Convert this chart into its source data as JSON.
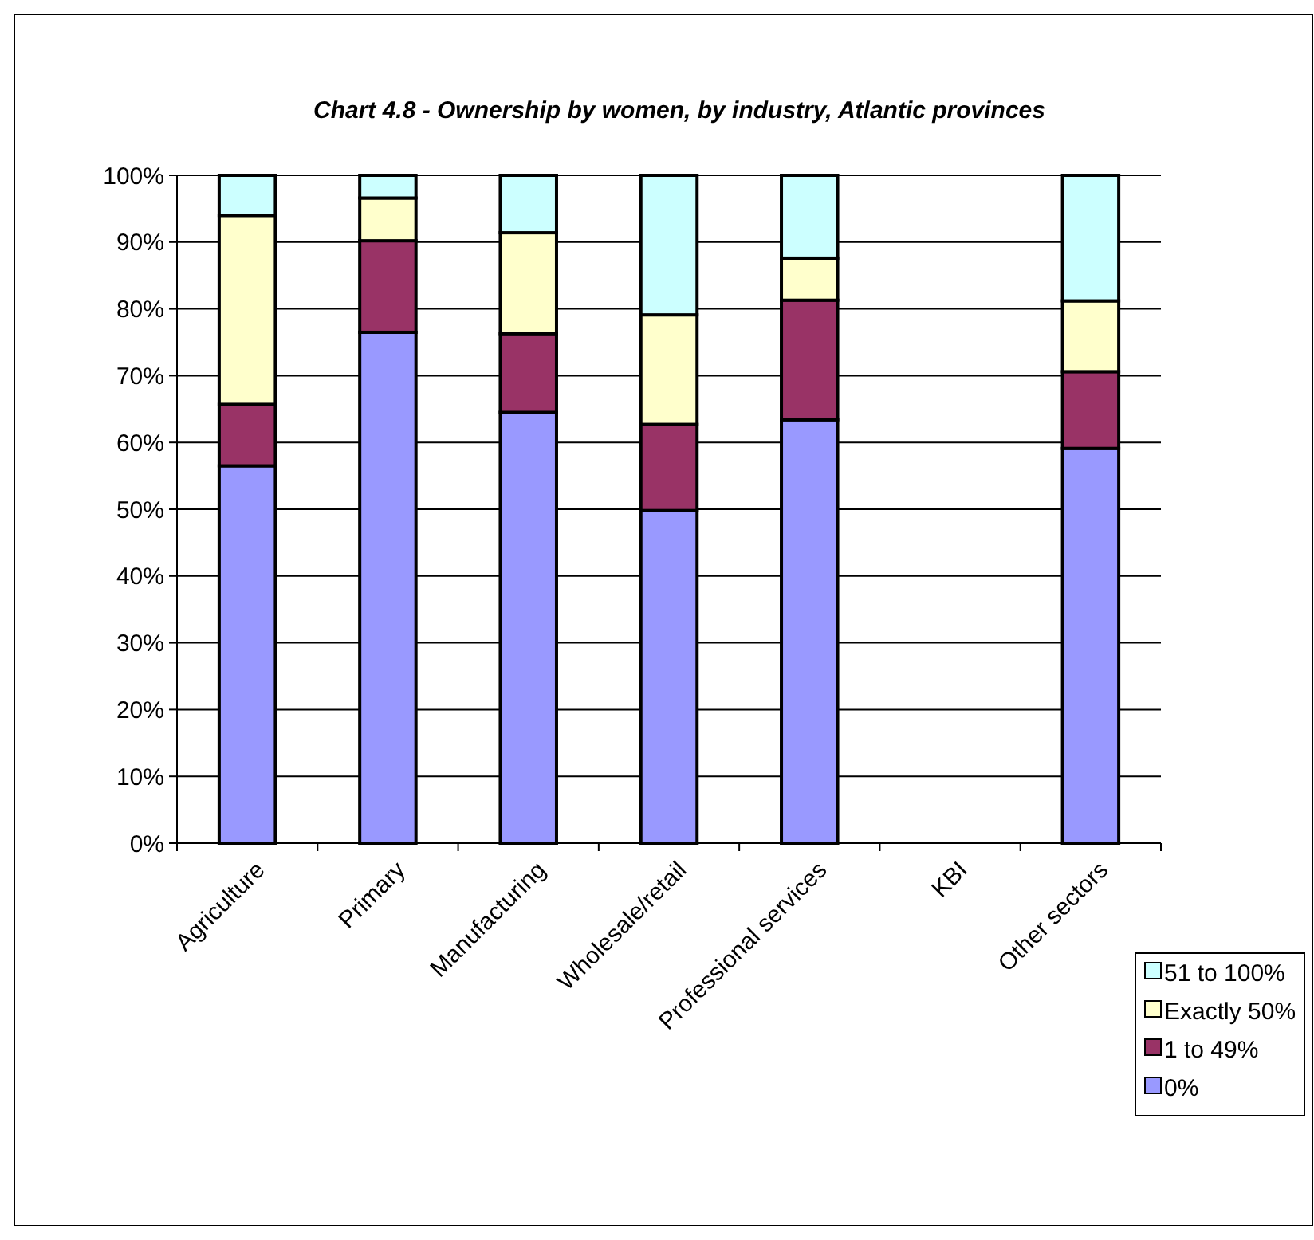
{
  "chart_data": {
    "type": "bar",
    "stacked": true,
    "title": "Chart 4.8 - Ownership by women, by industry, Atlantic provinces",
    "categories": [
      "Agriculture",
      "Primary",
      "Manufacturing",
      "Wholesale/retail",
      "Professional services",
      "KBI",
      "Other sectors"
    ],
    "series": [
      {
        "name": "0%",
        "color": "#9999ff",
        "values": [
          56.5,
          76.5,
          64.5,
          49.8,
          63.4,
          null,
          59.1
        ]
      },
      {
        "name": "1 to 49%",
        "color": "#993366",
        "values": [
          9.2,
          13.7,
          11.8,
          12.9,
          17.9,
          null,
          11.5
        ]
      },
      {
        "name": "Exactly 50%",
        "color": "#ffffcc",
        "values": [
          28.3,
          6.4,
          15.1,
          16.4,
          6.3,
          null,
          10.6
        ]
      },
      {
        "name": "51 to 100%",
        "color": "#ccffff",
        "values": [
          6.0,
          3.4,
          8.6,
          20.9,
          12.4,
          null,
          18.8
        ]
      }
    ],
    "ylim": [
      0,
      100
    ],
    "yticks": [
      {
        "value": 0,
        "label": "0%"
      },
      {
        "value": 10,
        "label": "10%"
      },
      {
        "value": 20,
        "label": "20%"
      },
      {
        "value": 30,
        "label": "30%"
      },
      {
        "value": 40,
        "label": "40%"
      },
      {
        "value": 50,
        "label": "50%"
      },
      {
        "value": 60,
        "label": "60%"
      },
      {
        "value": 70,
        "label": "70%"
      },
      {
        "value": 80,
        "label": "80%"
      },
      {
        "value": 90,
        "label": "90%"
      },
      {
        "value": 100,
        "label": "100%"
      }
    ],
    "grid": "y",
    "legend": "bottom right"
  }
}
